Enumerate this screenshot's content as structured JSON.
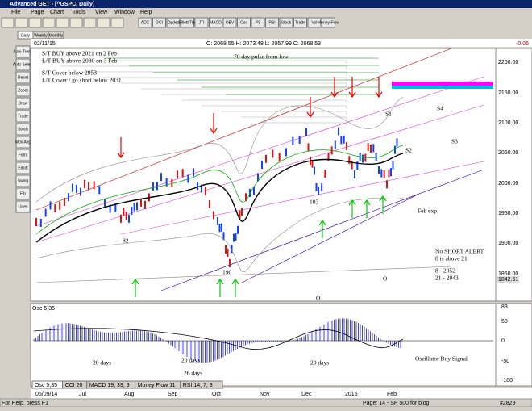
{
  "window": {
    "title": "Advanced GET - [^GSPC, Daily]"
  },
  "menu": [
    "File",
    "Page",
    "Chart",
    "Tools",
    "View",
    "Window",
    "Help"
  ],
  "toolbar": [
    "ADX",
    "GCI",
    "Opdes",
    "Elliott Trig",
    "JTI",
    "MACD",
    "OBV",
    "Osc",
    "PS",
    "RSI",
    "Stock",
    "Trade",
    "Vol",
    "Money Flow"
  ],
  "palette": [
    "Auto Trend",
    "Auto Select",
    "Reset",
    "Zoom",
    "Draw",
    "Trade",
    "Stoch",
    "Mov Avg",
    "Front",
    "Elliott",
    "Swing",
    "Fib",
    "Lines"
  ],
  "period_tabs": [
    "Daily",
    "Weekly",
    "Monthly"
  ],
  "info": {
    "date": "02/11/15",
    "ohlc": "O: 2068.55  H: 2073.48  L: 2057.99  C: 2068.53",
    "change": "-0.06"
  },
  "price_axis": [
    "2200.00",
    "2150.00",
    "2100.00",
    "2050.00",
    "2000.00",
    "1950.00",
    "1900.00",
    "1850.00",
    "1842.51"
  ],
  "annotations": [
    "S/T BUY above 2021 on 2 Feb",
    "L/T BUY above 2030 on 3 Feb",
    "S/T Cover below 2053",
    "L/T Cover / go short below 2031",
    "70 day pulse from low",
    "S1",
    "S4",
    "S2",
    "S3",
    "Feb exp.",
    "82",
    "103",
    "190",
    "O",
    "O",
    "No SHORT ALERT",
    "8 is above 21",
    "8   - 2052",
    "21  - 2043"
  ],
  "oscillator": {
    "title": "Osc 5,35",
    "axis": [
      "83",
      "50",
      "0",
      "-50",
      "-100"
    ],
    "annotations": [
      "20 days",
      "20 days",
      "26 days",
      "20 days",
      "Oscillator Buy Signal"
    ]
  },
  "date_axis": [
    "06/09/14",
    "Jul",
    "Aug",
    "Sep",
    "Oct",
    "Nov",
    "Dec",
    "2015",
    "Feb"
  ],
  "indicator_tabs": [
    "Osc 5,35",
    "CCI 20",
    "MACD 19, 39, 9",
    "Money Flow 11",
    "RSI 14, 7, 3"
  ],
  "status": [
    "For Help, press F1",
    "Page: 14 - SP 500 for blog",
    "#2829"
  ]
}
